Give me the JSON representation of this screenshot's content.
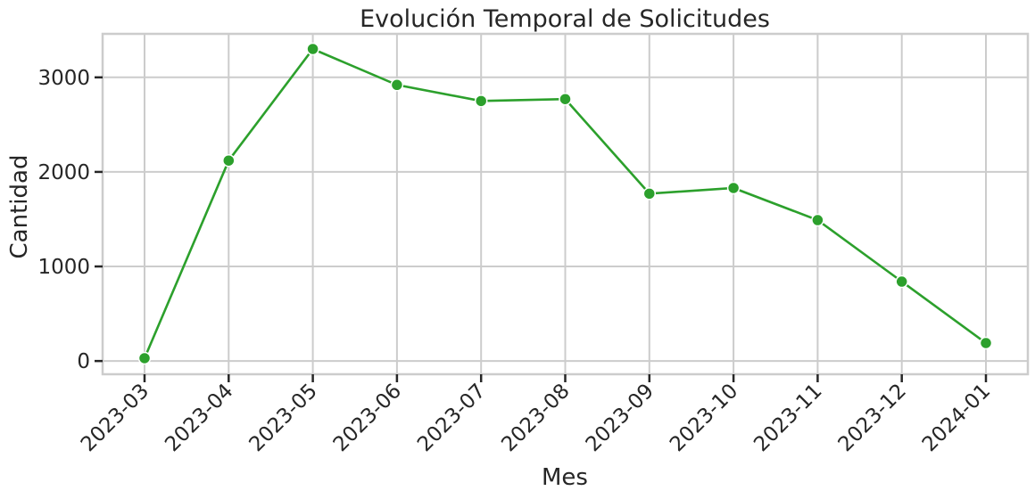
{
  "chart_data": {
    "type": "line",
    "title": "Evolución Temporal de Solicitudes",
    "xlabel": "Mes",
    "ylabel": "Cantidad",
    "categories": [
      "2023-03",
      "2023-04",
      "2023-05",
      "2023-06",
      "2023-07",
      "2023-08",
      "2023-09",
      "2023-10",
      "2023-11",
      "2023-12",
      "2024-01"
    ],
    "series": [
      {
        "values": [
          30,
          2120,
          3300,
          2920,
          2750,
          2770,
          1770,
          1830,
          1490,
          840,
          190
        ],
        "color": "#2ca02c"
      }
    ],
    "ylim": [
      -140,
      3460
    ],
    "yticks": [
      0,
      1000,
      2000,
      3000
    ],
    "grid": true,
    "legend": "none"
  }
}
